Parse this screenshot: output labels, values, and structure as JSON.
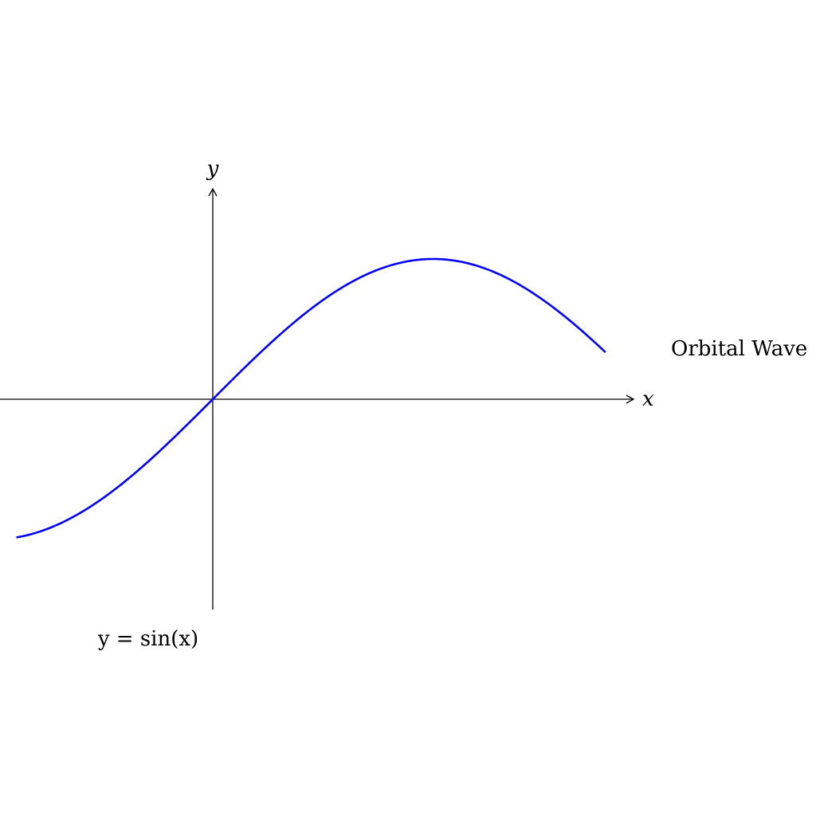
{
  "chart_data": {
    "type": "line",
    "xlabel": "x",
    "ylabel": "y",
    "xlim": [
      -1.57,
      3.42
    ],
    "ylim": [
      -1.5,
      1.5
    ],
    "grid": false,
    "series": [
      {
        "name": "Orbital Wave",
        "color": "#0000ff",
        "function": "sin",
        "x_range": [
          -1.4,
          2.8
        ]
      }
    ],
    "annotations": [
      {
        "text": "y = sin(x)",
        "near": "below origin"
      }
    ]
  }
}
